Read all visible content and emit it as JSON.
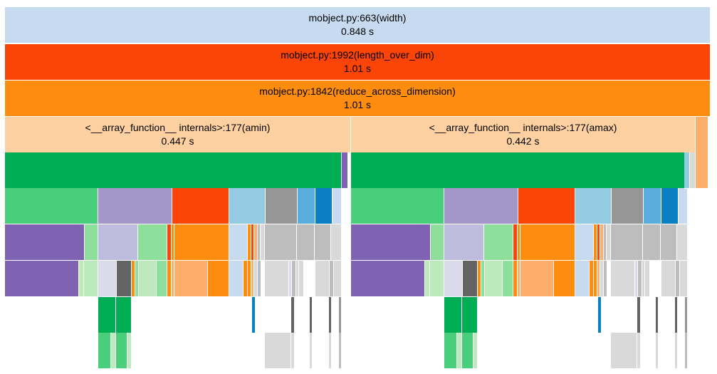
{
  "palette": {
    "lightblue": "#c6dbef",
    "red": "#fb4408",
    "orange": "#fd8d0e",
    "peach": "#fdd0a2",
    "lightorange": "#fdae6b",
    "green": "#00ad55",
    "mintgreen": "#49cf7b",
    "palegreen": "#8fdf9c",
    "paleletgreen": "#bdeabd",
    "purple": "#7f63b2",
    "lavender": "#a396c9",
    "palelavender": "#bdbcdf",
    "palestlavender": "#dadaeb",
    "skyblue": "#93cbe3",
    "blue": "#5aaedd",
    "darkblue": "#0a7fc4",
    "gray": "#969696",
    "lightgray": "#bdbdbd",
    "palegray": "#d9d9d9",
    "darkgray": "#636363"
  },
  "frames": [
    {
      "name": "frame-width",
      "label": "mobject.py:663(width)",
      "time": "0.848 s",
      "color": "lightblue"
    },
    {
      "name": "frame-length-over-dim",
      "label": "mobject.py:1992(length_over_dim)",
      "time": "1.01 s",
      "color": "red"
    },
    {
      "name": "frame-reduce-across-dimension",
      "label": "mobject.py:1842(reduce_across_dimension)",
      "time": "1.01 s",
      "color": "orange"
    },
    {
      "name": "frame-amin",
      "label": "<__array_function__ internals>:177(amin)",
      "time": "0.447 s",
      "color": "peach"
    },
    {
      "name": "frame-amax",
      "label": "<__array_function__ internals>:177(amax)",
      "time": "0.442 s",
      "color": "peach"
    }
  ]
}
